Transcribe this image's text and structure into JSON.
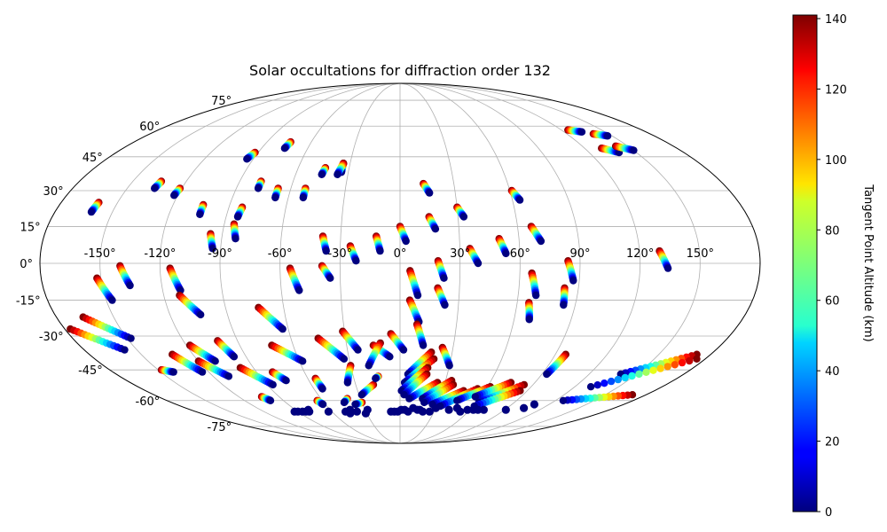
{
  "chart_data": {
    "type": "scatter",
    "title": "Solar occultations for diffraction order 132",
    "projection": "mollweide",
    "grid": true,
    "lon_ticks": [
      {
        "value": -150,
        "label": "-150°"
      },
      {
        "value": -120,
        "label": "-120°"
      },
      {
        "value": -90,
        "label": "-90°"
      },
      {
        "value": -60,
        "label": "-60°"
      },
      {
        "value": -30,
        "label": "-30°"
      },
      {
        "value": 0,
        "label": "0°"
      },
      {
        "value": 30,
        "label": "30°"
      },
      {
        "value": 60,
        "label": "60°"
      },
      {
        "value": 90,
        "label": "90°"
      },
      {
        "value": 120,
        "label": "120°"
      },
      {
        "value": 150,
        "label": "150°"
      }
    ],
    "lat_ticks": [
      {
        "value": 75,
        "label": "75°"
      },
      {
        "value": 60,
        "label": "60°"
      },
      {
        "value": 45,
        "label": "45°"
      },
      {
        "value": 30,
        "label": "30°"
      },
      {
        "value": 15,
        "label": "15°"
      },
      {
        "value": 0,
        "label": "0°"
      },
      {
        "value": -15,
        "label": "-15°"
      },
      {
        "value": -30,
        "label": "-30°"
      },
      {
        "value": -45,
        "label": "-45°"
      },
      {
        "value": -60,
        "label": "-60°"
      },
      {
        "value": -75,
        "label": "-75°"
      }
    ],
    "colorbar": {
      "label": "Tangent Point Altitude (km)",
      "colormap": "jet",
      "min": 0,
      "max": 141,
      "ticks": [
        {
          "value": 0,
          "label": "0"
        },
        {
          "value": 20,
          "label": "20"
        },
        {
          "value": 40,
          "label": "40"
        },
        {
          "value": 60,
          "label": "60"
        },
        {
          "value": 80,
          "label": "80"
        },
        {
          "value": 100,
          "label": "100"
        },
        {
          "value": 120,
          "label": "120"
        },
        {
          "value": 140,
          "label": "140"
        }
      ]
    },
    "tracks": [
      {
        "start": [
          -160,
          25
        ],
        "end": [
          -161,
          21
        ]
      },
      {
        "start": [
          -134,
          34
        ],
        "end": [
          -135,
          31
        ]
      },
      {
        "start": [
          -121,
          31
        ],
        "end": [
          -122,
          28
        ]
      },
      {
        "start": [
          -92,
          47
        ],
        "end": [
          -94,
          44
        ]
      },
      {
        "start": [
          -74,
          52
        ],
        "end": [
          -75,
          49
        ]
      },
      {
        "start": [
          -78,
          34
        ],
        "end": [
          -78,
          31
        ]
      },
      {
        "start": [
          -67,
          31
        ],
        "end": [
          -67,
          27
        ]
      },
      {
        "start": [
          -104,
          24
        ],
        "end": [
          -104,
          20
        ]
      },
      {
        "start": [
          -83,
          23
        ],
        "end": [
          -84,
          19
        ]
      },
      {
        "start": [
          -44,
          40
        ],
        "end": [
          -45,
          37
        ]
      },
      {
        "start": [
          -34,
          42
        ],
        "end": [
          -34,
          38
        ]
      },
      {
        "start": [
          -34,
          42
        ],
        "end": [
          -36,
          37
        ]
      },
      {
        "start": [
          -52,
          31
        ],
        "end": [
          -52,
          27
        ]
      },
      {
        "start": [
          -96,
          12
        ],
        "end": [
          -94,
          6
        ]
      },
      {
        "start": [
          -85,
          16
        ],
        "end": [
          -83,
          10
        ]
      },
      {
        "start": [
          -39,
          11
        ],
        "end": [
          -37,
          5
        ]
      },
      {
        "start": [
          -25,
          7
        ],
        "end": [
          -22,
          1
        ]
      },
      {
        "start": [
          -12,
          11
        ],
        "end": [
          -10,
          5
        ]
      },
      {
        "start": [
          0,
          15
        ],
        "end": [
          3,
          9
        ]
      },
      {
        "start": [
          13,
          33
        ],
        "end": [
          16,
          29
        ]
      },
      {
        "start": [
          15,
          19
        ],
        "end": [
          18,
          14
        ]
      },
      {
        "start": [
          30,
          23
        ],
        "end": [
          33,
          19
        ]
      },
      {
        "start": [
          35,
          6
        ],
        "end": [
          39,
          0
        ]
      },
      {
        "start": [
          50,
          10
        ],
        "end": [
          53,
          4
        ]
      },
      {
        "start": [
          61,
          30
        ],
        "end": [
          64,
          26
        ]
      },
      {
        "start": [
          67,
          15
        ],
        "end": [
          71,
          9
        ]
      },
      {
        "start": [
          125,
          58
        ],
        "end": [
          133,
          57
        ]
      },
      {
        "start": [
          139,
          56
        ],
        "end": [
          147,
          55
        ]
      },
      {
        "start": [
          131,
          49
        ],
        "end": [
          139,
          47
        ]
      },
      {
        "start": [
          142,
          50
        ],
        "end": [
          150,
          48
        ]
      },
      {
        "start": [
          84,
          1
        ],
        "end": [
          87,
          -7
        ]
      },
      {
        "start": [
          130,
          5
        ],
        "end": [
          134,
          -2
        ]
      },
      {
        "start": [
          -152,
          -6
        ],
        "end": [
          -147,
          -15
        ]
      },
      {
        "start": [
          -140,
          -1
        ],
        "end": [
          -136,
          -9
        ]
      },
      {
        "start": [
          -115,
          -2
        ],
        "end": [
          -111,
          -11
        ]
      },
      {
        "start": [
          -112,
          -13
        ],
        "end": [
          -104,
          -21
        ]
      },
      {
        "start": [
          -166,
          -22
        ],
        "end": [
          -148,
          -31
        ]
      },
      {
        "start": [
          -177,
          -27
        ],
        "end": [
          -157,
          -36
        ]
      },
      {
        "start": [
          -55,
          -2
        ],
        "end": [
          -51,
          -11
        ]
      },
      {
        "start": [
          -39,
          -1
        ],
        "end": [
          -35,
          -6
        ]
      },
      {
        "start": [
          -73,
          -18
        ],
        "end": [
          -63,
          -27
        ]
      },
      {
        "start": [
          5,
          -3
        ],
        "end": [
          9,
          -13
        ]
      },
      {
        "start": [
          5,
          -15
        ],
        "end": [
          10,
          -24
        ]
      },
      {
        "start": [
          19,
          1
        ],
        "end": [
          22,
          -6
        ]
      },
      {
        "start": [
          19,
          -10
        ],
        "end": [
          23,
          -17
        ]
      },
      {
        "start": [
          66,
          -4
        ],
        "end": [
          69,
          -13
        ]
      },
      {
        "start": [
          66,
          -16
        ],
        "end": [
          68,
          -23
        ]
      },
      {
        "start": [
          83,
          -10
        ],
        "end": [
          84,
          -17
        ]
      },
      {
        "start": [
          -101,
          -32
        ],
        "end": [
          -97,
          -39
        ]
      },
      {
        "start": [
          -118,
          -34
        ],
        "end": [
          -110,
          -41
        ]
      },
      {
        "start": [
          -132,
          -38
        ],
        "end": [
          -124,
          -46
        ]
      },
      {
        "start": [
          -72,
          -34
        ],
        "end": [
          -58,
          -41
        ]
      },
      {
        "start": [
          -45,
          -31
        ],
        "end": [
          -33,
          -40
        ]
      },
      {
        "start": [
          -31,
          -28
        ],
        "end": [
          -24,
          -36
        ]
      },
      {
        "start": [
          -15,
          -34
        ],
        "end": [
          -6,
          -39
        ]
      },
      {
        "start": [
          -5,
          -29
        ],
        "end": [
          2,
          -36
        ]
      },
      {
        "start": [
          9,
          -25
        ],
        "end": [
          13,
          -34
        ]
      },
      {
        "start": [
          24,
          -35
        ],
        "end": [
          30,
          -43
        ]
      },
      {
        "start": [
          -148,
          -45
        ],
        "end": [
          -142,
          -46
        ]
      },
      {
        "start": [
          -120,
          -41
        ],
        "end": [
          -110,
          -48
        ]
      },
      {
        "start": [
          -98,
          -44
        ],
        "end": [
          -86,
          -52
        ]
      },
      {
        "start": [
          -80,
          -46
        ],
        "end": [
          -75,
          -50
        ]
      },
      {
        "start": [
          -55,
          -49
        ],
        "end": [
          -54,
          -54
        ]
      },
      {
        "start": [
          -30,
          -43
        ],
        "end": [
          -35,
          -51
        ]
      },
      {
        "start": [
          -18,
          -52
        ],
        "end": [
          -28,
          -57
        ]
      },
      {
        "start": [
          -11,
          -33
        ],
        "end": [
          -19,
          -43
        ]
      },
      {
        "start": [
          -14,
          -48
        ],
        "end": [
          -16,
          -49
        ]
      },
      {
        "start": [
          18,
          -37
        ],
        "end": [
          5,
          -47
        ]
      },
      {
        "start": [
          20,
          -40
        ],
        "end": [
          3,
          -51
        ]
      },
      {
        "start": [
          17,
          -44
        ],
        "end": [
          1,
          -55
        ]
      },
      {
        "start": [
          17,
          -47
        ],
        "end": [
          3,
          -57
        ]
      },
      {
        "start": [
          25,
          -51
        ],
        "end": [
          7,
          -59
        ]
      },
      {
        "start": [
          34,
          -50
        ],
        "end": [
          17,
          -59
        ]
      },
      {
        "start": [
          36,
          -52
        ],
        "end": [
          19,
          -61
        ]
      },
      {
        "start": [
          45,
          -55
        ],
        "end": [
          26,
          -62
        ]
      },
      {
        "start": [
          54,
          -54
        ],
        "end": [
          33,
          -63
        ]
      },
      {
        "start": [
          62,
          -53
        ],
        "end": [
          44,
          -60
        ]
      },
      {
        "start": [
          74,
          -51
        ],
        "end": [
          56,
          -58
        ]
      },
      {
        "start": [
          84,
          -52
        ],
        "end": [
          62,
          -61
        ]
      },
      {
        "start": [
          85,
          -55
        ],
        "end": [
          61,
          -63
        ]
      },
      {
        "start": [
          96,
          -38
        ],
        "end": [
          93,
          -47
        ]
      },
      {
        "start": [
          172,
          -38
        ],
        "end": [
          140,
          -47
        ]
      },
      {
        "start": [
          175,
          -40
        ],
        "end": [
          131,
          -53
        ]
      },
      {
        "start": [
          170,
          -57
        ],
        "end": [
          126,
          -60
        ]
      },
      {
        "start": [
          -103,
          -58
        ],
        "end": [
          -100,
          -60
        ]
      },
      {
        "start": [
          -64,
          -60
        ],
        "end": [
          -62,
          -62
        ]
      },
      {
        "start": [
          -40,
          -59
        ],
        "end": [
          -44,
          -61
        ]
      },
      {
        "start": [
          -30,
          -61
        ],
        "end": [
          -36,
          -62
        ]
      }
    ],
    "dots": [
      [
        -93,
        -66
      ],
      [
        -90,
        -66
      ],
      [
        -86,
        -66
      ],
      [
        -83,
        -66
      ],
      [
        -80,
        -66
      ],
      [
        -79,
        -65
      ],
      [
        -63,
        -66
      ],
      [
        -48,
        -66
      ],
      [
        -45,
        -67
      ],
      [
        -43,
        -65
      ],
      [
        -38,
        -66
      ],
      [
        -31,
        -67
      ],
      [
        -28,
        -65
      ],
      [
        -8,
        -66
      ],
      [
        -5,
        -66
      ],
      [
        -2,
        -66
      ],
      [
        1,
        -65
      ],
      [
        4,
        -65
      ],
      [
        7,
        -66
      ],
      [
        11,
        -64
      ],
      [
        15,
        -65
      ],
      [
        17,
        -65
      ],
      [
        20,
        -66
      ],
      [
        26,
        -66
      ],
      [
        30,
        -64
      ],
      [
        42,
        -65
      ],
      [
        48,
        -64
      ],
      [
        53,
        -66
      ],
      [
        58,
        -65
      ],
      [
        63,
        -65
      ],
      [
        67,
        -65
      ],
      [
        72,
        -65
      ],
      [
        91,
        -65
      ],
      [
        104,
        -64
      ],
      [
        108,
        -62
      ]
    ]
  }
}
